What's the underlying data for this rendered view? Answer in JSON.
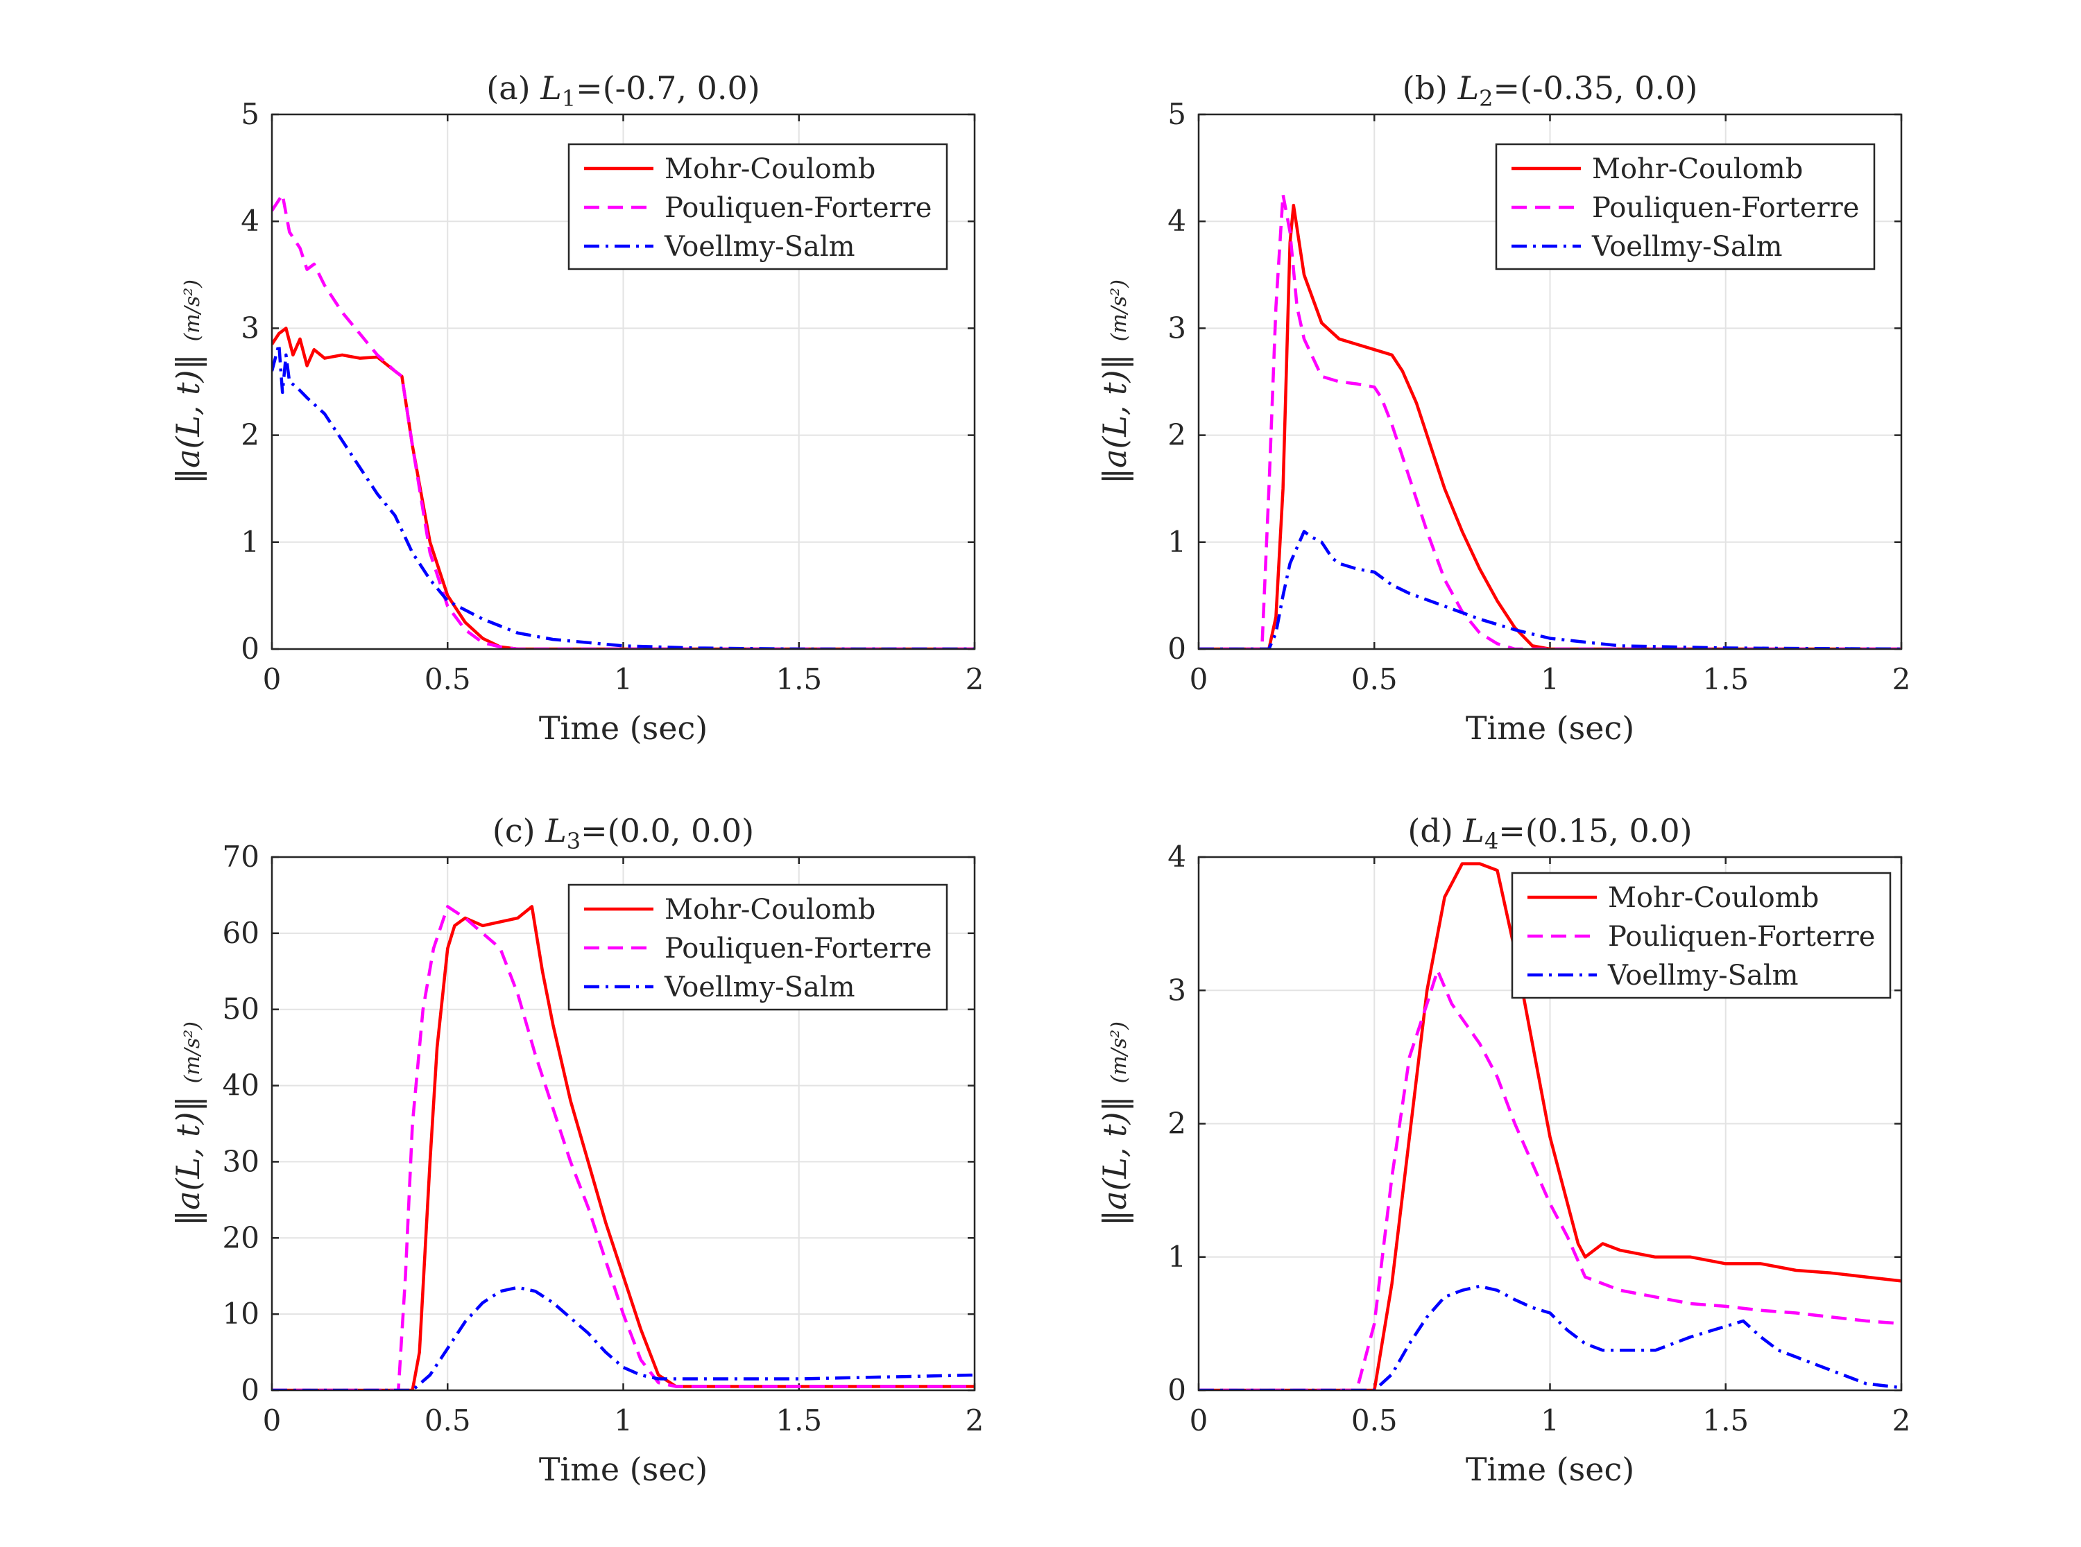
{
  "chart_data": [
    {
      "type": "line",
      "title": "(a) L1=(-0.7, 0.0)",
      "title_parts": {
        "prefix": "(a) ",
        "var": "L",
        "sub": "1",
        "suffix": "=(-0.7, 0.0)"
      },
      "xlabel": "Time (sec)",
      "ylabel": "‖a(L, t)‖",
      "yunit": "(m/s²)",
      "xlim": [
        0,
        2
      ],
      "ylim": [
        0,
        5
      ],
      "xticks": [
        "0",
        "0.5",
        "1",
        "1.5",
        "2"
      ],
      "yticks": [
        "0",
        "1",
        "2",
        "3",
        "4",
        "5"
      ],
      "grid": true,
      "legend_position": "top-right",
      "series": [
        {
          "name": "Mohr-Coulomb",
          "color": "#ff0000",
          "style": "solid",
          "x": [
            0,
            0.02,
            0.04,
            0.06,
            0.08,
            0.1,
            0.12,
            0.15,
            0.2,
            0.25,
            0.3,
            0.35,
            0.37,
            0.4,
            0.45,
            0.5,
            0.55,
            0.6,
            0.65,
            0.7,
            0.8,
            1,
            1.5,
            2
          ],
          "y": [
            2.85,
            2.95,
            3.0,
            2.75,
            2.9,
            2.65,
            2.8,
            2.72,
            2.75,
            2.72,
            2.73,
            2.6,
            2.55,
            1.9,
            1.0,
            0.5,
            0.25,
            0.1,
            0.02,
            0,
            0,
            0,
            0,
            0
          ]
        },
        {
          "name": "Pouliquen-Forterre",
          "color": "#ff00ff",
          "style": "dashed",
          "x": [
            0,
            0.02,
            0.03,
            0.05,
            0.08,
            0.1,
            0.12,
            0.15,
            0.2,
            0.25,
            0.3,
            0.35,
            0.37,
            0.4,
            0.45,
            0.5,
            0.55,
            0.6,
            0.65,
            0.7,
            1,
            2
          ],
          "y": [
            4.1,
            4.2,
            4.25,
            3.9,
            3.75,
            3.55,
            3.6,
            3.4,
            3.15,
            2.95,
            2.75,
            2.6,
            2.55,
            1.9,
            0.9,
            0.4,
            0.18,
            0.06,
            0.02,
            0,
            0,
            0
          ]
        },
        {
          "name": "Voellmy-Salm",
          "color": "#0000ff",
          "style": "dashdot",
          "x": [
            0,
            0.02,
            0.03,
            0.04,
            0.05,
            0.07,
            0.1,
            0.15,
            0.2,
            0.25,
            0.3,
            0.35,
            0.4,
            0.45,
            0.5,
            0.6,
            0.7,
            0.8,
            1,
            1.2,
            1.5,
            2
          ],
          "y": [
            2.6,
            2.85,
            2.4,
            2.75,
            2.5,
            2.45,
            2.35,
            2.2,
            1.95,
            1.7,
            1.45,
            1.25,
            0.9,
            0.65,
            0.45,
            0.28,
            0.15,
            0.09,
            0.03,
            0.01,
            0,
            0
          ]
        }
      ]
    },
    {
      "type": "line",
      "title": "(b) L2=(-0.35, 0.0)",
      "title_parts": {
        "prefix": "(b) ",
        "var": "L",
        "sub": "2",
        "suffix": "=(-0.35, 0.0)"
      },
      "xlabel": "Time (sec)",
      "ylabel": "‖a(L, t)‖",
      "yunit": "(m/s²)",
      "xlim": [
        0,
        2
      ],
      "ylim": [
        0,
        5
      ],
      "xticks": [
        "0",
        "0.5",
        "1",
        "1.5",
        "2"
      ],
      "yticks": [
        "0",
        "1",
        "2",
        "3",
        "4",
        "5"
      ],
      "grid": true,
      "legend_position": "top-right",
      "series": [
        {
          "name": "Mohr-Coulomb",
          "color": "#ff0000",
          "style": "solid",
          "x": [
            0,
            0.2,
            0.22,
            0.24,
            0.26,
            0.27,
            0.3,
            0.35,
            0.4,
            0.45,
            0.5,
            0.55,
            0.58,
            0.62,
            0.65,
            0.7,
            0.75,
            0.8,
            0.85,
            0.9,
            0.95,
            1,
            1.5,
            2
          ],
          "y": [
            0,
            0,
            0.3,
            1.5,
            3.8,
            4.15,
            3.5,
            3.05,
            2.9,
            2.85,
            2.8,
            2.75,
            2.6,
            2.3,
            2.0,
            1.5,
            1.1,
            0.75,
            0.45,
            0.2,
            0.03,
            0,
            0,
            0
          ]
        },
        {
          "name": "Pouliquen-Forterre",
          "color": "#ff00ff",
          "style": "dashed",
          "x": [
            0,
            0.18,
            0.2,
            0.22,
            0.24,
            0.26,
            0.28,
            0.3,
            0.35,
            0.4,
            0.45,
            0.5,
            0.52,
            0.55,
            0.6,
            0.65,
            0.7,
            0.75,
            0.8,
            0.85,
            0.9,
            1,
            2
          ],
          "y": [
            0,
            0,
            1.5,
            3.2,
            4.25,
            3.9,
            3.2,
            2.9,
            2.55,
            2.5,
            2.48,
            2.45,
            2.35,
            2.1,
            1.6,
            1.1,
            0.65,
            0.35,
            0.15,
            0.05,
            0,
            0,
            0
          ]
        },
        {
          "name": "Voellmy-Salm",
          "color": "#0000ff",
          "style": "dashdot",
          "x": [
            0,
            0.2,
            0.22,
            0.24,
            0.26,
            0.28,
            0.3,
            0.32,
            0.35,
            0.38,
            0.4,
            0.45,
            0.5,
            0.55,
            0.6,
            0.7,
            0.8,
            0.9,
            1,
            1.2,
            1.5,
            2
          ],
          "y": [
            0,
            0,
            0.15,
            0.5,
            0.8,
            0.95,
            1.1,
            1.05,
            1.0,
            0.85,
            0.8,
            0.75,
            0.72,
            0.6,
            0.52,
            0.4,
            0.28,
            0.18,
            0.1,
            0.03,
            0.01,
            0
          ]
        }
      ]
    },
    {
      "type": "line",
      "title": "(c) L3=(0.0, 0.0)",
      "title_parts": {
        "prefix": "(c) ",
        "var": "L",
        "sub": "3",
        "suffix": "=(0.0, 0.0)"
      },
      "xlabel": "Time (sec)",
      "ylabel": "‖a(L, t)‖",
      "yunit": "(m/s²)",
      "xlim": [
        0,
        2
      ],
      "ylim": [
        0,
        70
      ],
      "xticks": [
        "0",
        "0.5",
        "1",
        "1.5",
        "2"
      ],
      "yticks": [
        "0",
        "10",
        "20",
        "30",
        "40",
        "50",
        "60",
        "70"
      ],
      "grid": true,
      "legend_position": "top-right",
      "series": [
        {
          "name": "Mohr-Coulomb",
          "color": "#ff0000",
          "style": "solid",
          "x": [
            0,
            0.4,
            0.42,
            0.45,
            0.47,
            0.5,
            0.52,
            0.55,
            0.6,
            0.65,
            0.7,
            0.74,
            0.77,
            0.8,
            0.85,
            0.9,
            0.95,
            1,
            1.05,
            1.1,
            1.15,
            1.5,
            2
          ],
          "y": [
            0,
            0,
            5,
            30,
            45,
            58,
            61,
            62,
            61,
            61.5,
            62,
            63.5,
            55,
            48,
            38,
            30,
            22,
            15,
            8,
            2,
            0.5,
            0.5,
            0.5
          ]
        },
        {
          "name": "Pouliquen-Forterre",
          "color": "#ff00ff",
          "style": "dashed",
          "x": [
            0,
            0.36,
            0.38,
            0.4,
            0.43,
            0.46,
            0.5,
            0.55,
            0.6,
            0.65,
            0.7,
            0.75,
            0.8,
            0.85,
            0.9,
            0.95,
            1,
            1.05,
            1.1,
            1.15,
            1.5,
            2
          ],
          "y": [
            0,
            0,
            15,
            35,
            50,
            58,
            63.5,
            62,
            60,
            58,
            52,
            44,
            37,
            30,
            24,
            17,
            10,
            4,
            1,
            0.5,
            0.5,
            0.5
          ]
        },
        {
          "name": "Voellmy-Salm",
          "color": "#0000ff",
          "style": "dashdot",
          "x": [
            0,
            0.4,
            0.45,
            0.5,
            0.55,
            0.6,
            0.65,
            0.7,
            0.75,
            0.8,
            0.85,
            0.9,
            0.95,
            1,
            1.05,
            1.1,
            1.15,
            1.5,
            2
          ],
          "y": [
            0,
            0,
            2,
            5.5,
            9,
            11.5,
            13,
            13.5,
            13,
            11.5,
            9.5,
            7.5,
            5,
            3,
            2,
            1.5,
            1.5,
            1.5,
            2
          ]
        }
      ]
    },
    {
      "type": "line",
      "title": "(d) L4=(0.15, 0.0)",
      "title_parts": {
        "prefix": "(d) ",
        "var": "L",
        "sub": "4",
        "suffix": "=(0.15, 0.0)"
      },
      "xlabel": "Time (sec)",
      "ylabel": "‖a(L, t)‖",
      "yunit": "(m/s²)",
      "xlim": [
        0,
        2
      ],
      "ylim": [
        0,
        4
      ],
      "xticks": [
        "0",
        "0.5",
        "1",
        "1.5",
        "2"
      ],
      "yticks": [
        "0",
        "1",
        "2",
        "3",
        "4"
      ],
      "grid": true,
      "legend_position": "top-right",
      "series": [
        {
          "name": "Mohr-Coulomb",
          "color": "#ff0000",
          "style": "solid",
          "x": [
            0,
            0.5,
            0.55,
            0.6,
            0.65,
            0.7,
            0.75,
            0.8,
            0.85,
            0.9,
            0.95,
            1,
            1.05,
            1.08,
            1.1,
            1.15,
            1.2,
            1.3,
            1.4,
            1.5,
            1.6,
            1.7,
            1.8,
            1.9,
            2
          ],
          "y": [
            0,
            0,
            0.8,
            1.9,
            3.0,
            3.7,
            3.95,
            3.95,
            3.9,
            3.3,
            2.6,
            1.9,
            1.4,
            1.1,
            1.0,
            1.1,
            1.05,
            1.0,
            1.0,
            0.95,
            0.95,
            0.9,
            0.88,
            0.85,
            0.82
          ]
        },
        {
          "name": "Pouliquen-Forterre",
          "color": "#ff00ff",
          "style": "dashed",
          "x": [
            0,
            0.45,
            0.5,
            0.55,
            0.6,
            0.65,
            0.68,
            0.72,
            0.8,
            0.85,
            0.9,
            0.95,
            1,
            1.05,
            1.1,
            1.2,
            1.3,
            1.4,
            1.5,
            1.6,
            1.7,
            1.8,
            1.9,
            2
          ],
          "y": [
            0,
            0,
            0.5,
            1.6,
            2.5,
            2.9,
            3.15,
            2.9,
            2.6,
            2.35,
            2.0,
            1.7,
            1.4,
            1.15,
            0.85,
            0.75,
            0.7,
            0.65,
            0.63,
            0.6,
            0.58,
            0.55,
            0.52,
            0.5
          ]
        },
        {
          "name": "Voellmy-Salm",
          "color": "#0000ff",
          "style": "dashdot",
          "x": [
            0,
            0.5,
            0.55,
            0.6,
            0.65,
            0.7,
            0.75,
            0.8,
            0.85,
            0.9,
            0.95,
            1,
            1.05,
            1.1,
            1.15,
            1.2,
            1.3,
            1.4,
            1.5,
            1.55,
            1.6,
            1.65,
            1.7,
            1.8,
            1.9,
            2
          ],
          "y": [
            0,
            0,
            0.12,
            0.35,
            0.55,
            0.7,
            0.75,
            0.78,
            0.75,
            0.68,
            0.62,
            0.58,
            0.45,
            0.35,
            0.3,
            0.3,
            0.3,
            0.4,
            0.48,
            0.52,
            0.4,
            0.3,
            0.25,
            0.15,
            0.05,
            0.02
          ]
        }
      ]
    }
  ]
}
